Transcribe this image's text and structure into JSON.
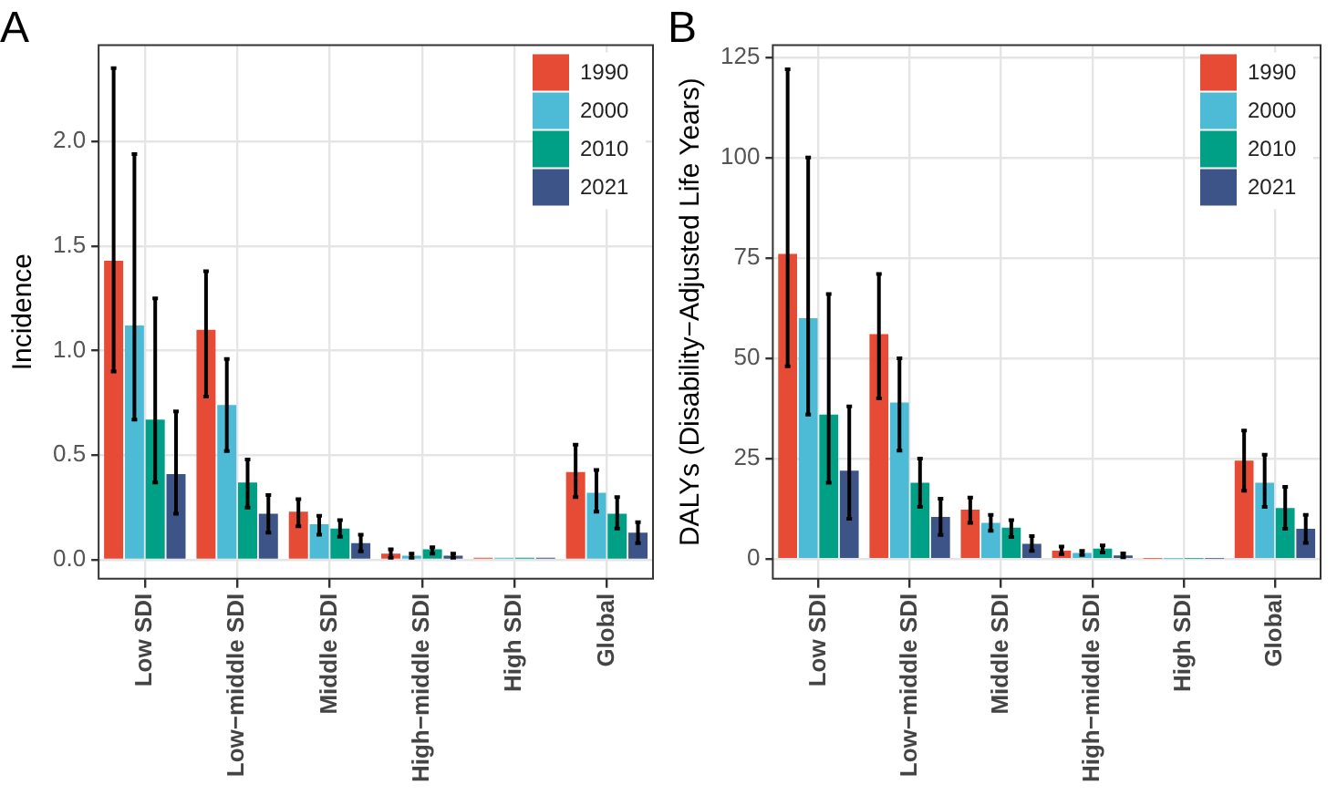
{
  "chart_data": [
    {
      "type": "bar",
      "title": "A",
      "ylabel": "Incidence",
      "categories": [
        "Low SDI",
        "Low−middle SDI",
        "Middle SDI",
        "High−middle SDI",
        "High SDI",
        "Global"
      ],
      "ylim": [
        -0.09,
        2.46
      ],
      "yticks": [
        {
          "value": 0,
          "label": "0.0"
        },
        0.5,
        {
          "value": 1,
          "label": "1.0"
        },
        1.5,
        {
          "value": 2,
          "label": "2.0"
        }
      ],
      "grid": true,
      "legend": "top right",
      "series": [
        {
          "name": "1990",
          "color": "#e64b35",
          "values": [
            1.43,
            1.1,
            0.23,
            0.03,
            0.01,
            0.42
          ],
          "errors": [
            [
              0.9,
              2.35
            ],
            [
              0.78,
              1.38
            ],
            [
              0.16,
              0.29
            ],
            [
              0.01,
              0.05
            ],
            null,
            [
              0.3,
              0.55
            ]
          ]
        },
        {
          "name": "2000",
          "color": "#4dbbd5",
          "values": [
            1.12,
            0.74,
            0.17,
            0.02,
            0.01,
            0.32
          ],
          "errors": [
            [
              0.67,
              1.94
            ],
            [
              0.52,
              0.96
            ],
            [
              0.12,
              0.21
            ],
            [
              0.01,
              0.03
            ],
            null,
            [
              0.23,
              0.43
            ]
          ]
        },
        {
          "name": "2010",
          "color": "#00a087",
          "values": [
            0.67,
            0.37,
            0.15,
            0.05,
            0.01,
            0.22
          ],
          "errors": [
            [
              0.37,
              1.25
            ],
            [
              0.25,
              0.48
            ],
            [
              0.11,
              0.19
            ],
            [
              0.03,
              0.06
            ],
            null,
            [
              0.15,
              0.3
            ]
          ]
        },
        {
          "name": "2021",
          "color": "#3c5488",
          "values": [
            0.41,
            0.22,
            0.08,
            0.02,
            0.01,
            0.13
          ],
          "errors": [
            [
              0.22,
              0.71
            ],
            [
              0.13,
              0.31
            ],
            [
              0.04,
              0.12
            ],
            [
              0.01,
              0.03
            ],
            null,
            [
              0.08,
              0.18
            ]
          ]
        }
      ]
    },
    {
      "type": "bar",
      "title": "B",
      "ylabel": "DALYs (Disability−Adjusted Life Years)",
      "categories": [
        "Low SDI",
        "Low−middle SDI",
        "Middle SDI",
        "High−middle SDI",
        "High SDI",
        "Global"
      ],
      "ylim": [
        -4.9,
        128
      ],
      "yticks": [
        0,
        25,
        50,
        75,
        100,
        125
      ],
      "grid": true,
      "legend": "top right",
      "series": [
        {
          "name": "1990",
          "color": "#e64b35",
          "values": [
            76,
            56,
            12.3,
            2.1,
            0.1,
            24.5
          ],
          "errors": [
            [
              48,
              122
            ],
            [
              40,
              71
            ],
            [
              9,
              15.3
            ],
            [
              1.2,
              3.1
            ],
            null,
            [
              17,
              32
            ]
          ]
        },
        {
          "name": "2000",
          "color": "#4dbbd5",
          "values": [
            60,
            39,
            9,
            1.5,
            0.1,
            19
          ],
          "errors": [
            [
              36,
              100
            ],
            [
              27,
              50
            ],
            [
              7,
              11
            ],
            [
              1,
              2
            ],
            null,
            [
              13,
              26
            ]
          ]
        },
        {
          "name": "2010",
          "color": "#00a087",
          "values": [
            36,
            19,
            7.8,
            2.6,
            0.1,
            12.7
          ],
          "errors": [
            [
              19,
              66
            ],
            [
              13,
              25
            ],
            [
              5.5,
              9.7
            ],
            [
              1.6,
              3.4
            ],
            null,
            [
              7.5,
              18
            ]
          ]
        },
        {
          "name": "2021",
          "color": "#3c5488",
          "values": [
            22,
            10.5,
            3.8,
            0.9,
            0.1,
            7.5
          ],
          "errors": [
            [
              10,
              38
            ],
            [
              6,
              15
            ],
            [
              2,
              5.7
            ],
            [
              0.4,
              1.4
            ],
            null,
            [
              4,
              11
            ]
          ]
        }
      ]
    }
  ]
}
